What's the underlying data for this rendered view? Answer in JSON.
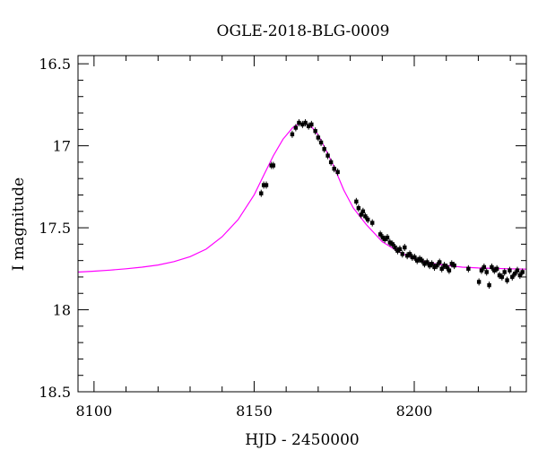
{
  "chart_data": {
    "type": "scatter",
    "title": "OGLE-2018-BLG-0009",
    "xlabel": "HJD - 2450000",
    "ylabel": "I magnitude",
    "xlim": [
      8095,
      8235
    ],
    "ylim": [
      18.5,
      16.45
    ],
    "y_inverted": true,
    "xticks": [
      8100,
      8150,
      8200
    ],
    "xtick_labels": [
      "8100",
      "8150",
      "8200"
    ],
    "yticks": [
      16.5,
      17,
      17.5,
      18,
      18.5
    ],
    "ytick_labels": [
      "16.5",
      "17",
      "17.5",
      "18",
      "18.5"
    ],
    "grid": false,
    "colors": {
      "model": "#ff00ff",
      "points": "#000000"
    },
    "series": [
      {
        "kind": "points",
        "x": [
          8152.2,
          8153.0,
          8153.8,
          8155.4,
          8156.0,
          8161.9,
          8163.0,
          8164.0,
          8165.1,
          8166.0,
          8167.0,
          8167.9,
          8169.1,
          8170.0,
          8170.9,
          8171.9,
          8173.0,
          8174.0,
          8175.0,
          8176.1,
          8181.9,
          8182.6,
          8183.4,
          8184.0,
          8184.7,
          8185.5,
          8186.9,
          8189.4,
          8190.2,
          8190.8,
          8191.6,
          8192.4,
          8193.2,
          8194.0,
          8194.8,
          8195.5,
          8196.3,
          8197.0,
          8197.8,
          8198.6,
          8199.4,
          8200.1,
          8200.9,
          8201.7,
          8202.4,
          8203.2,
          8204.0,
          8204.8,
          8205.5,
          8206.3,
          8207.1,
          8207.9,
          8208.6,
          8209.4,
          8210.2,
          8210.9,
          8211.7,
          8212.5,
          8216.9,
          8220.2,
          8221.0,
          8221.8,
          8222.6,
          8223.4,
          8224.2,
          8225.0,
          8225.8,
          8226.6,
          8227.4,
          8228.2,
          8229.0,
          8229.8,
          8230.6,
          8231.4,
          8232.2,
          8233.0,
          8233.8
        ],
        "y": [
          17.29,
          17.24,
          17.24,
          17.12,
          17.12,
          16.93,
          16.89,
          16.86,
          16.87,
          16.86,
          16.88,
          16.87,
          16.91,
          16.95,
          16.98,
          17.02,
          17.06,
          17.1,
          17.14,
          17.16,
          17.34,
          17.38,
          17.42,
          17.4,
          17.43,
          17.45,
          17.47,
          17.54,
          17.56,
          17.57,
          17.56,
          17.59,
          17.6,
          17.62,
          17.64,
          17.63,
          17.66,
          17.62,
          17.67,
          17.66,
          17.68,
          17.68,
          17.7,
          17.69,
          17.7,
          17.72,
          17.71,
          17.73,
          17.72,
          17.74,
          17.73,
          17.71,
          17.75,
          17.73,
          17.74,
          17.76,
          17.72,
          17.73,
          17.75,
          17.83,
          17.76,
          17.74,
          17.77,
          17.85,
          17.74,
          17.76,
          17.75,
          17.79,
          17.8,
          17.77,
          17.82,
          17.76,
          17.8,
          17.78,
          17.76,
          17.79,
          17.77
        ]
      },
      {
        "kind": "model",
        "x": [
          8095,
          8100,
          8105,
          8110,
          8115,
          8120,
          8125,
          8130,
          8135,
          8140,
          8145,
          8150,
          8153,
          8156,
          8159,
          8162,
          8164,
          8166,
          8168,
          8170,
          8172,
          8175,
          8178,
          8181,
          8185,
          8190,
          8195,
          8200,
          8205,
          8210,
          8215,
          8220,
          8225,
          8230,
          8235
        ],
        "y": [
          17.77,
          17.765,
          17.758,
          17.75,
          17.74,
          17.727,
          17.706,
          17.676,
          17.63,
          17.555,
          17.45,
          17.3,
          17.18,
          17.06,
          16.96,
          16.89,
          16.865,
          16.865,
          16.885,
          16.935,
          17.01,
          17.13,
          17.27,
          17.38,
          17.48,
          17.585,
          17.645,
          17.69,
          17.715,
          17.73,
          17.74,
          17.745,
          17.748,
          17.75,
          17.752
        ]
      }
    ]
  }
}
